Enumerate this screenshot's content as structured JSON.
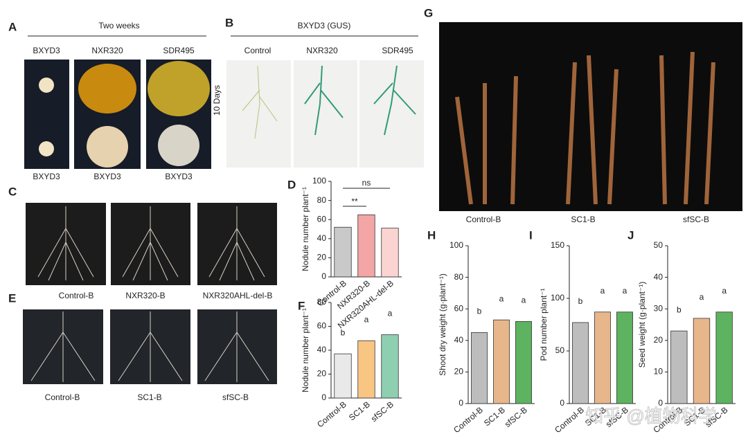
{
  "panels": {
    "A": {
      "letter": "A",
      "title": "Two weeks",
      "top": [
        "BXYD3",
        "NXR320",
        "SDR495"
      ],
      "bottom": [
        "BXYD3",
        "BXYD3",
        "BXYD3"
      ]
    },
    "B": {
      "letter": "B",
      "title": "BXYD3 (GUS)",
      "top": [
        "Control",
        "NXR320",
        "SDR495"
      ],
      "side": "10 Days"
    },
    "C": {
      "letter": "C",
      "captions": [
        "Control-B",
        "NXR320-B",
        "NXR320AHL-del-B"
      ]
    },
    "E": {
      "letter": "E",
      "captions": [
        "Control-B",
        "SC1-B",
        "sfSC-B"
      ]
    },
    "G": {
      "letter": "G",
      "captions": [
        "Control-B",
        "SC1-B",
        "sfSC-B"
      ]
    },
    "watermark": "知乎 @植物科学"
  },
  "chart_data": [
    {
      "type": "bar",
      "panel": "D",
      "ylabel": "Nodule number plant⁻¹",
      "categories": [
        "Control-B",
        "NXR320-B",
        "NXR320AHL-del-B"
      ],
      "values": [
        52,
        65,
        51
      ],
      "colors": [
        "#c9c9c9",
        "#f4a5a5",
        "#fbd3d0"
      ],
      "ylim": [
        0,
        100
      ],
      "yticks": [
        0,
        20,
        40,
        60,
        80,
        100
      ],
      "annotations": [
        "**",
        "ns"
      ]
    },
    {
      "type": "bar",
      "panel": "F",
      "ylabel": "Nodule number plant⁻¹",
      "categories": [
        "Control-B",
        "SC1-B",
        "sfSC-B"
      ],
      "values": [
        37,
        48,
        53
      ],
      "colors": [
        "#e9e9e9",
        "#f9c582",
        "#8fcfb1"
      ],
      "ylim": [
        0,
        80
      ],
      "yticks": [
        0,
        20,
        40,
        60,
        80
      ],
      "annotations": [
        "b",
        "a",
        "a"
      ]
    },
    {
      "type": "bar",
      "panel": "H",
      "ylabel": "Shoot dry weight (g·plant⁻¹)",
      "categories": [
        "Control-B",
        "SC1-B",
        "sfSC-B"
      ],
      "values": [
        45,
        53,
        52
      ],
      "colors": [
        "#bdbdbd",
        "#e8b68b",
        "#5db35f"
      ],
      "ylim": [
        0,
        100
      ],
      "yticks": [
        0,
        20,
        40,
        60,
        80,
        100
      ],
      "annotations": [
        "b",
        "a",
        "a"
      ]
    },
    {
      "type": "bar",
      "panel": "I",
      "ylabel": "Pod number plant⁻¹",
      "categories": [
        "Control-B",
        "SC1-B",
        "sfSC-B"
      ],
      "values": [
        77,
        87,
        87
      ],
      "colors": [
        "#bdbdbd",
        "#e8b68b",
        "#5db35f"
      ],
      "ylim": [
        0,
        150
      ],
      "yticks": [
        0,
        50,
        100,
        150
      ],
      "annotations": [
        "b",
        "a",
        "a"
      ]
    },
    {
      "type": "bar",
      "panel": "J",
      "ylabel": "Seed weight (g·plant⁻¹)",
      "categories": [
        "Control-B",
        "SC1-B",
        "sfSC-B"
      ],
      "values": [
        23,
        27,
        29
      ],
      "colors": [
        "#bdbdbd",
        "#e8b68b",
        "#5db35f"
      ],
      "ylim": [
        0,
        50
      ],
      "yticks": [
        0,
        10,
        20,
        30,
        40,
        50
      ],
      "annotations": [
        "b",
        "a",
        "a"
      ]
    }
  ]
}
